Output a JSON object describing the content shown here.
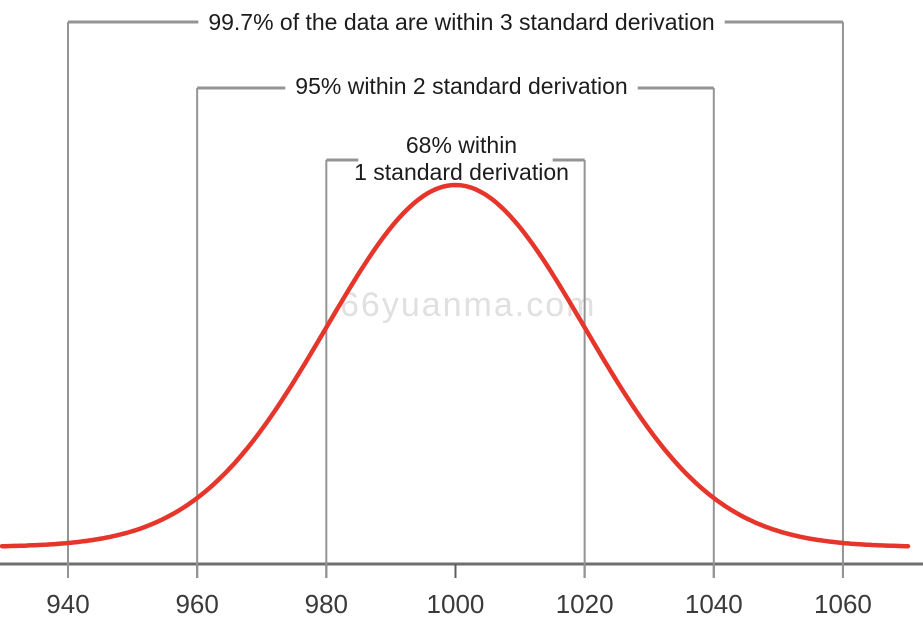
{
  "watermark": "66yuanma.com",
  "chart_data": {
    "type": "line",
    "title": "",
    "subtitle": "",
    "curve": "normal-distribution",
    "mean": 1000,
    "std_dev": 20,
    "x_ticks": [
      940,
      960,
      980,
      1000,
      1020,
      1040,
      1060
    ],
    "xlim": [
      929,
      1072
    ],
    "grid": false,
    "legend": "none",
    "annotations": [
      {
        "label": "99.7% of the data are within 3 standard derivation",
        "from": 940,
        "to": 1060,
        "sigma": 3
      },
      {
        "label": "95% within 2 standard derivation",
        "from": 960,
        "to": 1040,
        "sigma": 2
      },
      {
        "label": "68% within\n1 standard derivation",
        "from": 980,
        "to": 1020,
        "sigma": 1
      }
    ],
    "colors": {
      "curve": "#e6362b",
      "bracket_line": "#949494",
      "axis_line": "#6e6e6e",
      "tick": "#5f5f5f",
      "annotation_text": "#1c1c1c",
      "axis_label_text": "#3a3a3a",
      "watermark": "#e0e0e0"
    }
  }
}
